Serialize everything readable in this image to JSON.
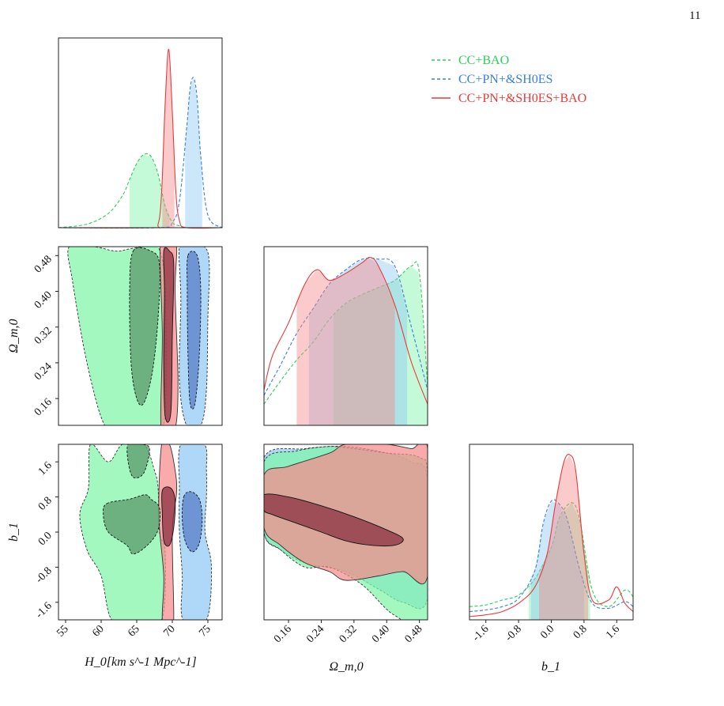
{
  "page": {
    "number": "11"
  },
  "chart_data": {
    "type": "corner",
    "parameters": [
      {
        "name": "H0",
        "label": "H_0[km s^-1 Mpc^-1]",
        "ticks": [
          "55",
          "60",
          "65",
          "70",
          "75"
        ],
        "range": [
          54,
          77
        ]
      },
      {
        "name": "Omega_m0",
        "label": "Ω_m,0",
        "ticks": [
          "0.16",
          "0.24",
          "0.32",
          "0.40",
          "0.48"
        ],
        "range": [
          0.1,
          0.5
        ]
      },
      {
        "name": "b1",
        "label": "b_1",
        "ticks": [
          "-1.6",
          "-0.8",
          "0.0",
          "0.8",
          "1.6"
        ],
        "range": [
          -2.0,
          2.0
        ]
      }
    ],
    "series": [
      {
        "name": "CC+BAO",
        "color": "#2ecc5a",
        "fill": "#7ff5a8",
        "fill_inner": "#5b9a6c",
        "line": "dashed",
        "H0": {
          "x": [
            54,
            58,
            61,
            63,
            64,
            65,
            66,
            67,
            68,
            69,
            70,
            71,
            72,
            74,
            77
          ],
          "density": [
            0.0,
            0.02,
            0.08,
            0.18,
            0.27,
            0.36,
            0.41,
            0.4,
            0.3,
            0.12,
            0.03,
            0.01,
            0.0,
            0.0,
            0.0
          ],
          "interval": [
            64,
            69.6
          ]
        },
        "Omega_m0": {
          "x": [
            0.1,
            0.14,
            0.18,
            0.22,
            0.26,
            0.3,
            0.34,
            0.38,
            0.42,
            0.46,
            0.48,
            0.5
          ],
          "density": [
            0.12,
            0.25,
            0.37,
            0.47,
            0.6,
            0.69,
            0.74,
            0.78,
            0.82,
            0.9,
            0.86,
            0.22
          ],
          "interval": [
            0.27,
            0.5
          ]
        },
        "b1": {
          "x": [
            -2.0,
            -1.6,
            -1.2,
            -0.8,
            -0.4,
            0.0,
            0.2,
            0.5,
            0.7,
            1.0,
            1.4,
            1.8,
            2.0
          ],
          "density": [
            0.08,
            0.09,
            0.12,
            0.15,
            0.25,
            0.44,
            0.62,
            0.71,
            0.6,
            0.18,
            0.08,
            0.18,
            0.14
          ],
          "interval": [
            -0.55,
            0.95
          ]
        }
      },
      {
        "name": "CC+PN+&SH0ES",
        "color": "#3a7de0",
        "fill": "#8fc8f5",
        "fill_inner": "#5a7ec8",
        "line": "dashed",
        "H0": {
          "x": [
            54,
            68,
            70,
            71,
            72,
            72.5,
            73,
            73.5,
            74,
            75,
            77
          ],
          "density": [
            0.0,
            0.0,
            0.03,
            0.15,
            0.55,
            0.78,
            0.84,
            0.72,
            0.4,
            0.07,
            0.0
          ],
          "interval": [
            71.8,
            74.2
          ]
        },
        "Omega_m0": {
          "x": [
            0.1,
            0.14,
            0.18,
            0.22,
            0.26,
            0.3,
            0.34,
            0.38,
            0.42,
            0.46,
            0.5
          ],
          "density": [
            0.17,
            0.34,
            0.52,
            0.66,
            0.8,
            0.88,
            0.94,
            0.94,
            0.9,
            0.56,
            0.2
          ],
          "interval": [
            0.21,
            0.45
          ]
        },
        "b1": {
          "x": [
            -2.0,
            -1.6,
            -1.2,
            -0.8,
            -0.4,
            -0.2,
            0.0,
            0.2,
            0.4,
            0.7,
            1.0,
            1.4,
            1.8,
            2.0
          ],
          "density": [
            0.05,
            0.06,
            0.08,
            0.13,
            0.3,
            0.58,
            0.72,
            0.7,
            0.6,
            0.3,
            0.1,
            0.07,
            0.11,
            0.08
          ],
          "interval": [
            -0.5,
            0.8
          ]
        }
      },
      {
        "name": "CC+PN+&SH0ES+BAO",
        "color": "#e83a3a",
        "fill": "#f78a8a",
        "fill_inner": "#8a3040",
        "line": "solid",
        "H0": {
          "x": [
            54,
            67,
            68,
            68.5,
            69,
            69.5,
            70,
            70.5,
            71,
            72,
            77
          ],
          "density": [
            0.0,
            0.0,
            0.02,
            0.2,
            0.7,
            1.0,
            0.65,
            0.2,
            0.04,
            0.0,
            0.0
          ],
          "interval": [
            68.6,
            70.3
          ]
        },
        "Omega_m0": {
          "x": [
            0.1,
            0.12,
            0.16,
            0.2,
            0.23,
            0.26,
            0.3,
            0.34,
            0.36,
            0.38,
            0.42,
            0.46,
            0.5
          ],
          "density": [
            0.2,
            0.39,
            0.58,
            0.8,
            0.88,
            0.82,
            0.86,
            0.92,
            0.95,
            0.9,
            0.68,
            0.36,
            0.12
          ],
          "interval": [
            0.18,
            0.42
          ]
        },
        "b1": {
          "x": [
            -2.0,
            -1.6,
            -1.2,
            -0.8,
            -0.4,
            -0.1,
            0.1,
            0.3,
            0.45,
            0.6,
            0.8,
            1.0,
            1.4,
            1.6,
            1.8,
            2.0
          ],
          "density": [
            0.02,
            0.03,
            0.05,
            0.1,
            0.2,
            0.4,
            0.7,
            0.95,
            1.0,
            0.9,
            0.4,
            0.12,
            0.12,
            0.2,
            0.1,
            0.05
          ],
          "interval": [
            -0.3,
            0.9
          ]
        }
      }
    ],
    "joint_contours": {
      "H0_Omega_m0": [
        {
          "series": "CC+BAO",
          "level": 2,
          "x": [
            55.5,
            59,
            62,
            64,
            66,
            68,
            69,
            68.8,
            66,
            63,
            60.5,
            58,
            56
          ],
          "y": [
            0.5,
            0.5,
            0.49,
            0.495,
            0.5,
            0.5,
            0.4,
            0.1,
            0.1,
            0.1,
            0.1,
            0.24,
            0.42
          ]
        },
        {
          "series": "CC+BAO",
          "level": 1,
          "x": [
            64.5,
            67,
            68.2,
            68.0,
            67.2,
            66,
            65,
            64.2,
            64.0
          ],
          "y": [
            0.49,
            0.49,
            0.46,
            0.34,
            0.22,
            0.15,
            0.16,
            0.24,
            0.4
          ]
        },
        {
          "series": "CC+PN+&SH0ES",
          "level": 2,
          "x": [
            71.0,
            72.5,
            74.5,
            75.2,
            75.0,
            74.8,
            74.0,
            72.0,
            71.0,
            71.2
          ],
          "y": [
            0.5,
            0.5,
            0.5,
            0.46,
            0.34,
            0.18,
            0.1,
            0.1,
            0.2,
            0.38
          ]
        },
        {
          "series": "CC+PN+&SH0ES",
          "level": 1,
          "x": [
            72.2,
            73.5,
            74.0,
            73.8,
            73.2,
            72.5,
            72.2,
            72.1
          ],
          "y": [
            0.48,
            0.48,
            0.4,
            0.26,
            0.15,
            0.15,
            0.26,
            0.4
          ]
        },
        {
          "series": "CC+PN+&SH0ES+BAO",
          "level": 2,
          "x": [
            68.3,
            69.5,
            70.6,
            70.4,
            70.8,
            70.5,
            69.5,
            68.4,
            68.6
          ],
          "y": [
            0.5,
            0.5,
            0.5,
            0.4,
            0.2,
            0.1,
            0.1,
            0.1,
            0.3
          ]
        },
        {
          "series": "CC+PN+&SH0ES+BAO",
          "level": 1,
          "x": [
            68.8,
            69.6,
            70.2,
            70.0,
            69.8,
            69.0,
            68.8,
            68.9
          ],
          "y": [
            0.49,
            0.49,
            0.46,
            0.3,
            0.13,
            0.12,
            0.24,
            0.4
          ]
        }
      ],
      "H0_b1": [
        {
          "series": "CC+BAO",
          "level": 2,
          "x": [
            58.5,
            61,
            63,
            66,
            67.5,
            68,
            68.2,
            69,
            68.5,
            65,
            61.5,
            60,
            58,
            57,
            58.2
          ],
          "y": [
            2.0,
            1.6,
            2.0,
            2.0,
            1.4,
            1.0,
            0.0,
            -0.5,
            -2.0,
            -2.0,
            -2.0,
            -1.0,
            -0.4,
            0.4,
            1.0
          ]
        },
        {
          "series": "CC+BAO",
          "level": 1,
          "x": [
            60.8,
            64,
            66.2,
            67.0,
            68.2,
            68.0,
            66.5,
            64.5,
            63.6,
            61,
            60.3
          ],
          "y": [
            0.65,
            0.75,
            0.85,
            0.75,
            0.55,
            0.05,
            -0.3,
            -0.5,
            -0.3,
            0.0,
            0.4
          ]
        },
        {
          "series": "CC+BAO",
          "level": 1,
          "x": [
            63.8,
            65.5,
            66.8,
            66.0,
            64.5,
            63.8
          ],
          "y": [
            2.0,
            2.0,
            1.9,
            1.35,
            1.25,
            1.6
          ]
        },
        {
          "series": "CC+PN+&SH0ES",
          "level": 2,
          "x": [
            71.2,
            74.5,
            74.8,
            74.8,
            74.6,
            75.5,
            74.8,
            71.5,
            71.4,
            71.0,
            71.0
          ],
          "y": [
            2.0,
            2.0,
            1.4,
            0.8,
            0.0,
            -0.8,
            -2.0,
            -2.0,
            -1.0,
            0.0,
            1.0
          ]
        },
        {
          "series": "CC+PN+&SH0ES",
          "level": 1,
          "x": [
            71.6,
            72.6,
            73.8,
            74.2,
            73.8,
            72.8,
            71.8,
            71.4
          ],
          "y": [
            0.8,
            0.92,
            0.75,
            0.3,
            -0.25,
            -0.45,
            -0.2,
            0.3
          ]
        },
        {
          "series": "CC+PN+&SH0ES+BAO",
          "level": 2,
          "x": [
            68.5,
            69.6,
            70.4,
            70.6,
            70.0,
            70.2,
            69.6,
            68.6,
            68.8,
            68.1
          ],
          "y": [
            2.0,
            2.0,
            1.4,
            0.9,
            0.0,
            -2.0,
            -2.0,
            -2.0,
            -1.0,
            0.4
          ]
        },
        {
          "series": "CC+PN+&SH0ES+BAO",
          "level": 1,
          "x": [
            68.6,
            69.8,
            70.4,
            70.2,
            69.6,
            68.8,
            68.6
          ],
          "y": [
            0.95,
            1.0,
            0.7,
            0.1,
            -0.3,
            -0.2,
            0.4
          ]
        }
      ],
      "Omega_m0_b1": [
        {
          "series": "CC+PN+&SH0ES",
          "level": 2,
          "x": [
            0.1,
            0.2,
            0.3,
            0.4,
            0.46,
            0.5,
            0.5,
            0.44,
            0.38,
            0.3,
            0.2,
            0.14,
            0.1
          ],
          "y": [
            1.7,
            1.9,
            1.95,
            1.8,
            1.6,
            1.2,
            -1.5,
            -1.6,
            -1.3,
            -0.9,
            -0.7,
            -0.4,
            0.0
          ]
        },
        {
          "series": "CC+BAO",
          "level": 2,
          "x": [
            0.1,
            0.18,
            0.26,
            0.32,
            0.4,
            0.48,
            0.5,
            0.5,
            0.42,
            0.34,
            0.26,
            0.2,
            0.14,
            0.1
          ],
          "y": [
            1.6,
            1.85,
            1.95,
            1.9,
            1.8,
            1.7,
            1.2,
            -2.0,
            -1.9,
            -1.2,
            -0.8,
            -0.8,
            -0.4,
            0.0
          ]
        },
        {
          "series": "CC+PN+&SH0ES+BAO",
          "level": 2,
          "x": [
            0.1,
            0.16,
            0.26,
            0.3,
            0.4,
            0.46,
            0.5,
            0.5,
            0.44,
            0.38,
            0.3,
            0.26,
            0.2,
            0.14,
            0.1
          ],
          "y": [
            1.3,
            1.5,
            1.8,
            2.0,
            2.0,
            1.9,
            1.9,
            -1.0,
            -0.9,
            -1.0,
            -1.1,
            -0.9,
            -0.7,
            -0.3,
            0.1
          ]
        },
        {
          "series": "CC+PN+&SH0ES+BAO",
          "level": 1,
          "x": [
            0.1,
            0.16,
            0.24,
            0.32,
            0.4,
            0.44,
            0.42,
            0.36,
            0.3,
            0.24,
            0.18,
            0.12,
            0.1
          ],
          "y": [
            0.85,
            0.8,
            0.6,
            0.35,
            0.05,
            -0.15,
            -0.3,
            -0.3,
            -0.2,
            0.0,
            0.2,
            0.4,
            0.5
          ]
        }
      ]
    },
    "legend": {
      "placement": "top-right",
      "entries": [
        {
          "label": "CC+BAO",
          "color": "#2ecc5a",
          "line": "dashed"
        },
        {
          "label": "CC+PN+&SH0ES",
          "color": "#3a7de0",
          "line": "dashed"
        },
        {
          "label": "CC+PN+&SH0ES+BAO",
          "color": "#e83a3a",
          "line": "solid"
        }
      ]
    }
  }
}
